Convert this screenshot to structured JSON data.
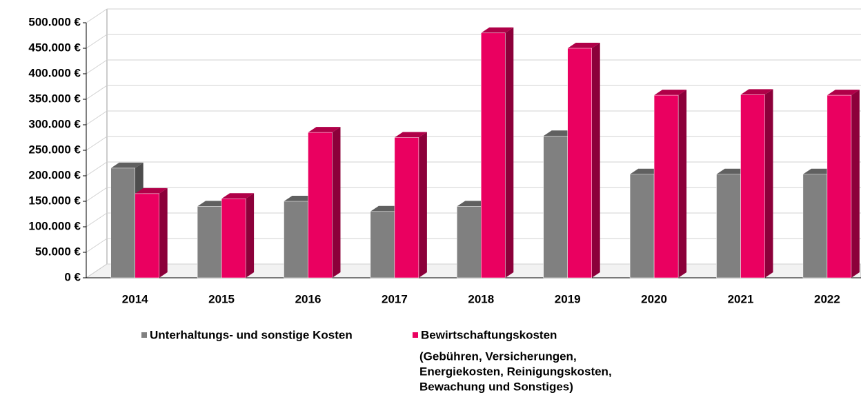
{
  "chart_data": {
    "type": "bar3d",
    "categories": [
      "2014",
      "2015",
      "2016",
      "2017",
      "2018",
      "2019",
      "2020",
      "2021",
      "2022"
    ],
    "series": [
      {
        "name": "Unterhaltungs- und sonstige Kosten",
        "color": "#808080",
        "values": [
          215000,
          140000,
          150000,
          130000,
          140000,
          278000,
          203000,
          203000,
          203000
        ]
      },
      {
        "name": "Bewirtschaftungskosten",
        "color": "#ea0060",
        "values": [
          165000,
          155000,
          285000,
          275000,
          480000,
          450000,
          358000,
          359000,
          358000
        ]
      }
    ],
    "legend_note": [
      "(Gebühren, Versicherungen,",
      "Energiekosten, Reinigungskosten,",
      "Bewachung und Sonstiges)"
    ],
    "ylim": [
      0,
      500000
    ],
    "yticks": [
      {
        "value": 0,
        "label": "0 €"
      },
      {
        "value": 50000,
        "label": "50.000 €"
      },
      {
        "value": 100000,
        "label": "100.000 €"
      },
      {
        "value": 150000,
        "label": "150.000 €"
      },
      {
        "value": 200000,
        "label": "200.000 €"
      },
      {
        "value": 250000,
        "label": "250.000 €"
      },
      {
        "value": 300000,
        "label": "300.000 €"
      },
      {
        "value": 350000,
        "label": "350.000 €"
      },
      {
        "value": 400000,
        "label": "400.000 €"
      },
      {
        "value": 450000,
        "label": "450.000 €"
      },
      {
        "value": 500000,
        "label": "500.000 €"
      }
    ],
    "grid": true
  }
}
